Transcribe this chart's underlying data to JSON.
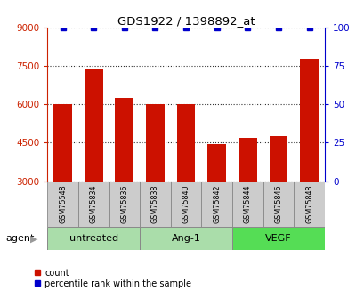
{
  "title": "GDS1922 / 1398892_at",
  "samples": [
    "GSM75548",
    "GSM75834",
    "GSM75836",
    "GSM75838",
    "GSM75840",
    "GSM75842",
    "GSM75844",
    "GSM75846",
    "GSM75848"
  ],
  "counts": [
    6000,
    7350,
    6250,
    6000,
    6000,
    4450,
    4700,
    4750,
    7800
  ],
  "percentiles": [
    100,
    100,
    100,
    100,
    100,
    100,
    100,
    100,
    100
  ],
  "groups": [
    {
      "label": "untreated",
      "indices": [
        0,
        1,
        2
      ]
    },
    {
      "label": "Ang-1",
      "indices": [
        3,
        4,
        5
      ]
    },
    {
      "label": "VEGF",
      "indices": [
        6,
        7,
        8
      ]
    }
  ],
  "bar_color": "#cc1100",
  "dot_color": "#0000cc",
  "ylim_left": [
    3000,
    9000
  ],
  "ylim_right": [
    0,
    100
  ],
  "yticks_left": [
    3000,
    4500,
    6000,
    7500,
    9000
  ],
  "yticks_right": [
    0,
    25,
    50,
    75,
    100
  ],
  "left_axis_color": "#cc2200",
  "right_axis_color": "#0000cc",
  "bg_fig": "#ffffff",
  "grid_color": "#000000",
  "agent_label": "agent",
  "group_colors": [
    "#aaddaa",
    "#aaddaa",
    "#55dd55"
  ],
  "sample_box_color": "#cccccc",
  "legend_count_label": "count",
  "legend_pct_label": "percentile rank within the sample"
}
